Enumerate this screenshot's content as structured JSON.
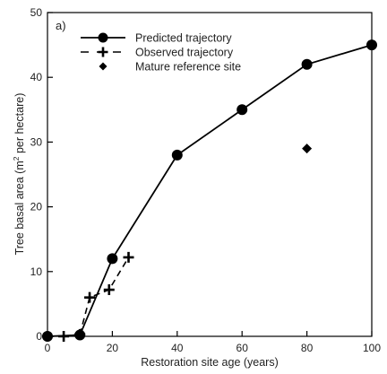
{
  "chart_data": {
    "type": "line",
    "panel_label": "a)",
    "xlabel": "Restoration site age (years)",
    "ylabel_parts": {
      "before": "Tree basal area (m",
      "superscript": "2",
      "after": " per hectare)"
    },
    "xlim": [
      0,
      100
    ],
    "ylim": [
      0,
      50
    ],
    "xticks": [
      0,
      20,
      40,
      60,
      80,
      100
    ],
    "yticks": [
      0,
      10,
      20,
      30,
      40,
      50
    ],
    "grid": false,
    "legend_position": "top-left",
    "series": [
      {
        "name": "Predicted trajectory",
        "style": "solid-line-circle",
        "color": "#000000",
        "x": [
          0,
          10,
          20,
          40,
          60,
          80,
          100
        ],
        "y": [
          0,
          0.2,
          12,
          28,
          35,
          42,
          45
        ]
      },
      {
        "name": "Observed trajectory",
        "style": "dashed-line-plus",
        "color": "#000000",
        "x": [
          0,
          5,
          10,
          13,
          19,
          25
        ],
        "y": [
          0,
          0,
          0.3,
          6,
          7.2,
          12.2
        ]
      },
      {
        "name": "Mature reference site",
        "style": "diamond",
        "color": "#000000",
        "x": [
          80
        ],
        "y": [
          29
        ]
      }
    ]
  }
}
